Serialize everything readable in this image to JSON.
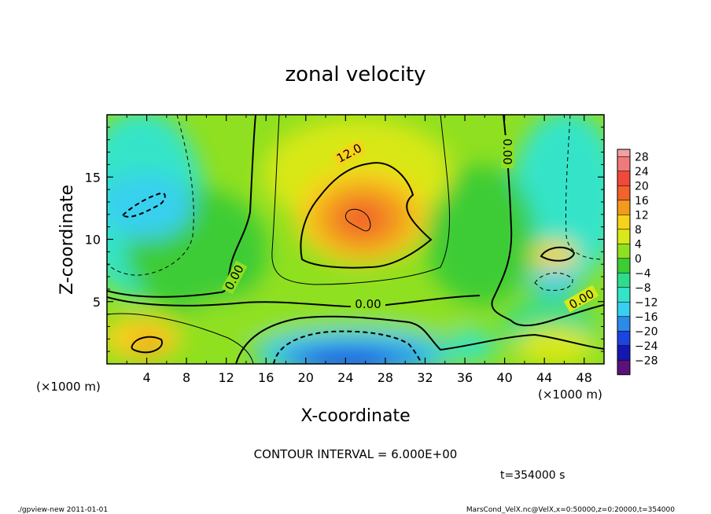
{
  "chart_data": {
    "type": "heatmap",
    "title": "zonal velocity",
    "xlabel": "X-coordinate",
    "ylabel": "Z-coordinate",
    "x_unit_note": "(×1000 m)",
    "y_unit_note": "(×1000 m)",
    "xlim": [
      0,
      50
    ],
    "ylim": [
      0,
      20
    ],
    "xticks": [
      4,
      8,
      12,
      16,
      20,
      24,
      28,
      32,
      36,
      40,
      44,
      48
    ],
    "yticks": [
      5,
      10,
      15
    ],
    "colorbar": {
      "levels": [
        28,
        24,
        20,
        16,
        12,
        8,
        4,
        0,
        -4,
        -8,
        -12,
        -16,
        -20,
        -24,
        -28
      ],
      "colors": [
        "#f07a7a",
        "#f24a3a",
        "#f2622a",
        "#f29a1c",
        "#f8d21a",
        "#d8e818",
        "#8fe020",
        "#3ccc34",
        "#2fdc8e",
        "#35e4c8",
        "#38d0ee",
        "#2c8ae8",
        "#1c44e0",
        "#1418b0",
        "#5a127a"
      ],
      "top_color": "#f2a0a0"
    },
    "contour_labels": [
      "12.0",
      "0.00",
      "0.00",
      "0.00",
      "0.00"
    ],
    "annotations": {
      "contour_interval": "CONTOUR INTERVAL = 6.000E+00",
      "time": "t=354000 s"
    },
    "features": [
      {
        "name": "jet core",
        "x": 25,
        "z": 12,
        "value": 18
      },
      {
        "name": "negative cell",
        "x": 4,
        "z": 12.5,
        "value": -10
      },
      {
        "name": "bottom negative cell",
        "x": 25,
        "z": 0.5,
        "value": -22
      },
      {
        "name": "bottom positive cell",
        "x": 4,
        "z": 1.5,
        "value": 10
      },
      {
        "name": "right positive cell",
        "x": 45,
        "z": 8.5,
        "value": 6
      },
      {
        "name": "right negative cell",
        "x": 44,
        "z": 6.5,
        "value": -8
      }
    ]
  },
  "footer": {
    "left": "./gpview-new   2011-01-01",
    "right": "MarsCond_VelX.nc@VelX,x=0:50000,z=0:20000,t=354000"
  }
}
